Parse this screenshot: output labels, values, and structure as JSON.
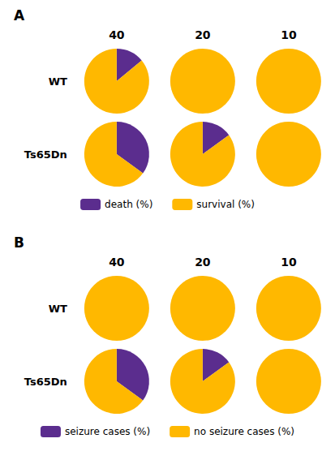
{
  "chart_data": [
    {
      "type": "pie",
      "title": "A",
      "categories": [
        "40",
        "20",
        "10"
      ],
      "rows": [
        "WT",
        "Ts65Dn"
      ],
      "series": [
        {
          "name": "death (%)",
          "color": "#5B2D8E",
          "values": [
            [
              14,
              0,
              0
            ],
            [
              35,
              15,
              0
            ]
          ]
        },
        {
          "name": "survival (%)",
          "color": "#FFB800",
          "values": [
            [
              86,
              100,
              100
            ],
            [
              65,
              85,
              100
            ]
          ]
        }
      ],
      "legend": "bottom"
    },
    {
      "type": "pie",
      "title": "B",
      "categories": [
        "40",
        "20",
        "10"
      ],
      "rows": [
        "WT",
        "Ts65Dn"
      ],
      "series": [
        {
          "name": "seizure cases (%)",
          "color": "#5B2D8E",
          "values": [
            [
              0,
              0,
              0
            ],
            [
              35,
              15,
              0
            ]
          ]
        },
        {
          "name": "no seizure cases (%)",
          "color": "#FFB800",
          "values": [
            [
              100,
              100,
              100
            ],
            [
              65,
              85,
              100
            ]
          ]
        }
      ],
      "legend": "bottom"
    }
  ]
}
